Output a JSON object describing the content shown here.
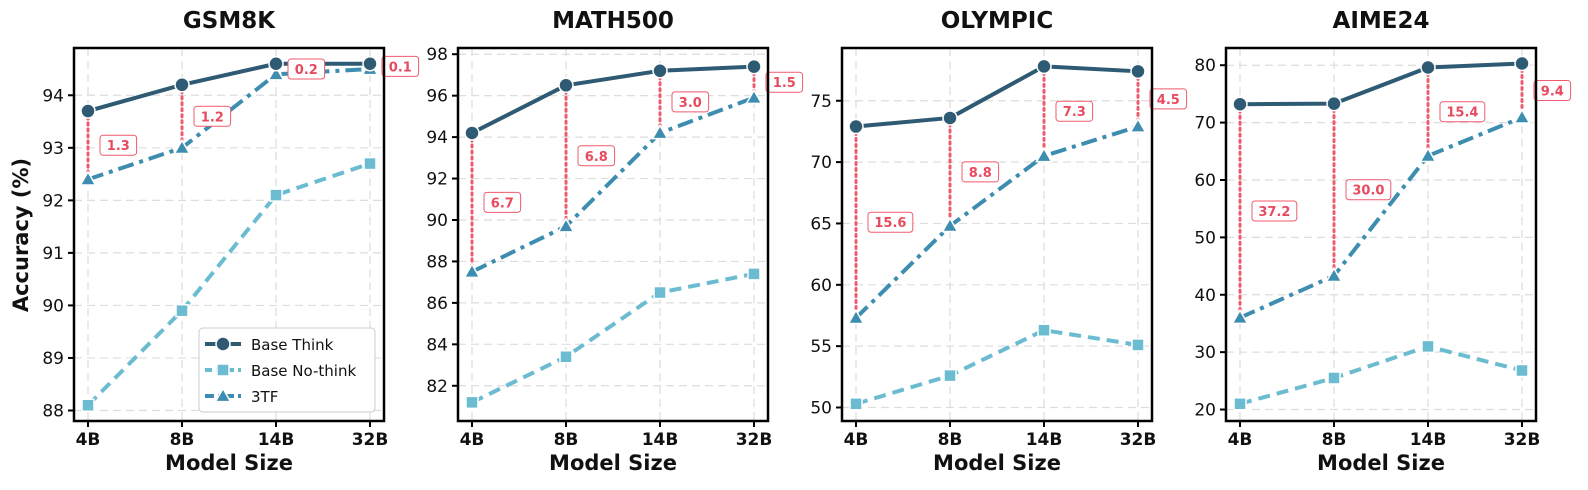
{
  "figure": {
    "ylabel_shared": "Accuracy (%)"
  },
  "colors": {
    "base_think": "#2e5a73",
    "base_nothink": "#6cbcd1",
    "tf": "#3d8db0",
    "gap_line": "#f05a6e",
    "gap_text": "#e84a5f",
    "grid": "#dddddd"
  },
  "legend": {
    "items": [
      {
        "label": "Base Think",
        "series": "base_think"
      },
      {
        "label": "Base No-think",
        "series": "base_nothink"
      },
      {
        "label": "3TF",
        "series": "tf"
      }
    ],
    "placement": "lower-right of first panel"
  },
  "chart_data": [
    {
      "type": "line",
      "title": "GSM8K",
      "xlabel": "Model Size",
      "ylabel": "Accuracy (%)",
      "categories": [
        "4B",
        "8B",
        "14B",
        "32B"
      ],
      "ylim": [
        87.8,
        94.9
      ],
      "yticks": [
        88,
        89,
        90,
        91,
        92,
        93,
        94
      ],
      "grid": true,
      "series": [
        {
          "name": "Base Think",
          "key": "base_think",
          "values": [
            93.7,
            94.2,
            94.6,
            94.6
          ]
        },
        {
          "name": "Base No-think",
          "key": "base_nothink",
          "values": [
            88.1,
            89.9,
            92.1,
            92.7
          ]
        },
        {
          "name": "3TF",
          "key": "tf",
          "values": [
            92.4,
            93.0,
            94.4,
            94.5
          ]
        }
      ],
      "gap_labels": [
        "1.3",
        "1.2",
        "0.2",
        "0.1"
      ]
    },
    {
      "type": "line",
      "title": "MATH500",
      "xlabel": "Model Size",
      "ylabel": "",
      "categories": [
        "4B",
        "8B",
        "14B",
        "32B"
      ],
      "ylim": [
        80.3,
        98.3
      ],
      "yticks": [
        82,
        84,
        86,
        88,
        90,
        92,
        94,
        96,
        98
      ],
      "grid": true,
      "series": [
        {
          "name": "Base Think",
          "key": "base_think",
          "values": [
            94.2,
            96.5,
            97.2,
            97.4
          ]
        },
        {
          "name": "Base No-think",
          "key": "base_nothink",
          "values": [
            81.2,
            83.4,
            86.5,
            87.4
          ]
        },
        {
          "name": "3TF",
          "key": "tf",
          "values": [
            87.5,
            89.7,
            94.2,
            95.9
          ]
        }
      ],
      "gap_labels": [
        "6.7",
        "6.8",
        "3.0",
        "1.5"
      ]
    },
    {
      "type": "line",
      "title": "OLYMPIC",
      "xlabel": "Model Size",
      "ylabel": "",
      "categories": [
        "4B",
        "8B",
        "14B",
        "32B"
      ],
      "ylim": [
        48.9,
        79.3
      ],
      "yticks": [
        50,
        55,
        60,
        65,
        70,
        75
      ],
      "grid": true,
      "series": [
        {
          "name": "Base Think",
          "key": "base_think",
          "values": [
            72.9,
            73.6,
            77.8,
            77.4
          ]
        },
        {
          "name": "Base No-think",
          "key": "base_nothink",
          "values": [
            50.3,
            52.6,
            56.3,
            55.1
          ]
        },
        {
          "name": "3TF",
          "key": "tf",
          "values": [
            57.3,
            64.8,
            70.5,
            72.9
          ]
        }
      ],
      "gap_labels": [
        "15.6",
        "8.8",
        "7.3",
        "4.5"
      ]
    },
    {
      "type": "line",
      "title": "AIME24",
      "xlabel": "Model Size",
      "ylabel": "",
      "categories": [
        "4B",
        "8B",
        "14B",
        "32B"
      ],
      "ylim": [
        18,
        83
      ],
      "yticks": [
        20,
        30,
        40,
        50,
        60,
        70,
        80
      ],
      "grid": true,
      "series": [
        {
          "name": "Base Think",
          "key": "base_think",
          "values": [
            73.2,
            73.3,
            79.6,
            80.3
          ]
        },
        {
          "name": "Base No-think",
          "key": "base_nothink",
          "values": [
            21.0,
            25.5,
            31.0,
            26.8
          ]
        },
        {
          "name": "3TF",
          "key": "tf",
          "values": [
            36.0,
            43.3,
            64.2,
            70.9
          ]
        }
      ],
      "gap_labels": [
        "37.2",
        "30.0",
        "15.4",
        "9.4"
      ]
    }
  ]
}
